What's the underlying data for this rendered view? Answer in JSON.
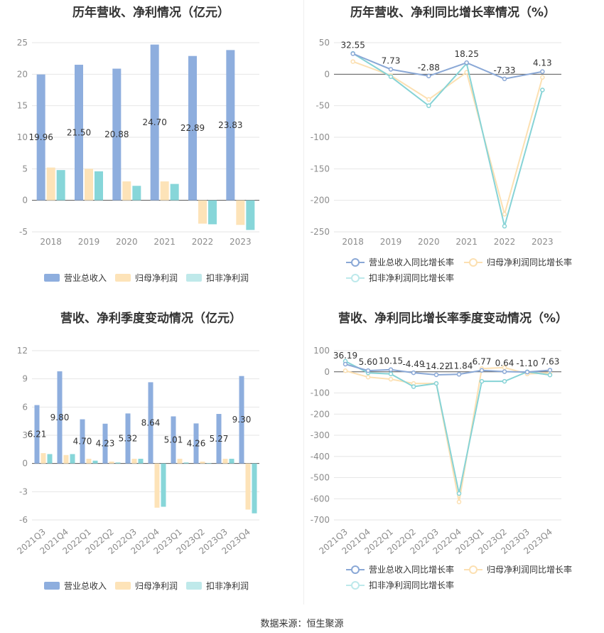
{
  "source_label": "数据来源：恒生聚源",
  "colors": {
    "revenue": "#8eaede",
    "parent_profit": "#fde3b8",
    "deducted_profit": "#87d6d9",
    "revenue_line": "#8aa8d6",
    "parent_line": "#fce0b2",
    "deducted_line": "#86d3d6",
    "grid": "#e6e6e6",
    "axis_text": "#8c8c8c"
  },
  "chart_data": [
    {
      "id": "annual_bar",
      "type": "bar",
      "title": "历年营收、净利情况（亿元）",
      "categories": [
        "2018",
        "2019",
        "2020",
        "2021",
        "2022",
        "2023"
      ],
      "ylim": [
        -5,
        25
      ],
      "yticks": [
        25,
        20,
        15,
        10,
        5,
        0,
        -5
      ],
      "series": [
        {
          "name": "营业总收入",
          "values": [
            19.96,
            21.5,
            20.88,
            24.7,
            22.89,
            23.83
          ],
          "labels": [
            "19.96",
            "21.50",
            "20.88",
            "24.70",
            "22.89",
            "23.83"
          ]
        },
        {
          "name": "归母净利润",
          "values": [
            5.2,
            5.0,
            3.0,
            3.0,
            -3.7,
            -3.9
          ]
        },
        {
          "name": "扣非净利润",
          "values": [
            4.8,
            4.6,
            2.3,
            2.6,
            -3.8,
            -4.7
          ]
        }
      ],
      "legend": "bottom",
      "grid": true
    },
    {
      "id": "annual_growth",
      "type": "line",
      "title": "历年营收、净利同比增长率情况（%）",
      "categories": [
        "2018",
        "2019",
        "2020",
        "2021",
        "2022",
        "2023"
      ],
      "ylim": [
        -250,
        50
      ],
      "yticks": [
        50,
        0,
        -50,
        -100,
        -150,
        -200,
        -250
      ],
      "series": [
        {
          "name": "营业总收入同比增长率",
          "values": [
            32.55,
            7.73,
            -2.88,
            18.25,
            -7.33,
            4.13
          ],
          "labels": [
            "32.55",
            "7.73",
            "-2.88",
            "18.25",
            "-7.33",
            "4.13"
          ]
        },
        {
          "name": "归母净利润同比增长率",
          "values": [
            20,
            -2,
            -40,
            3,
            -222,
            -5
          ]
        },
        {
          "name": "扣非净利润同比增长率",
          "values": [
            33,
            -4,
            -50,
            17,
            -241,
            -25
          ]
        }
      ],
      "legend": "bottom",
      "grid": true
    },
    {
      "id": "quarterly_bar",
      "type": "bar",
      "title": "营收、净利季度变动情况（亿元）",
      "categories": [
        "2021Q3",
        "2021Q4",
        "2022Q1",
        "2022Q2",
        "2022Q3",
        "2022Q4",
        "2023Q1",
        "2023Q2",
        "2023Q3",
        "2023Q4"
      ],
      "ylim": [
        -6,
        12
      ],
      "yticks": [
        12,
        9,
        6,
        3,
        0,
        -3,
        -6
      ],
      "series": [
        {
          "name": "营业总收入",
          "values": [
            6.21,
            9.8,
            4.7,
            4.23,
            5.32,
            8.64,
            5.01,
            4.26,
            5.27,
            9.3
          ],
          "labels": [
            "6.21",
            "9.80",
            "4.70",
            "4.23",
            "5.32",
            "8.64",
            "5.01",
            "4.26",
            "5.27",
            "9.30"
          ]
        },
        {
          "name": "归母净利润",
          "values": [
            1.1,
            0.9,
            0.5,
            0.2,
            0.5,
            -4.7,
            0.5,
            0.2,
            0.5,
            -4.9
          ]
        },
        {
          "name": "扣非净利润",
          "values": [
            1.0,
            1.0,
            0.3,
            0.1,
            0.5,
            -4.6,
            0.1,
            0.05,
            0.5,
            -5.3
          ]
        }
      ],
      "legend": "bottom",
      "grid": true
    },
    {
      "id": "quarterly_growth",
      "type": "line",
      "title": "营收、净利同比增长率季度变动情况（%）",
      "categories": [
        "2021Q3",
        "2021Q4",
        "2022Q1",
        "2022Q2",
        "2022Q3",
        "2022Q4",
        "2023Q1",
        "2023Q2",
        "2023Q3",
        "2023Q4"
      ],
      "ylim": [
        -700,
        100
      ],
      "yticks": [
        100,
        0,
        -100,
        -200,
        -300,
        -400,
        -500,
        -600,
        -700
      ],
      "series": [
        {
          "name": "营业总收入同比增长率",
          "values": [
            36.19,
            5.6,
            10.15,
            -4.49,
            -14.22,
            -11.84,
            6.77,
            0.64,
            -1.1,
            7.63
          ],
          "labels": [
            "36.19",
            "5.60",
            "10.15",
            "-4.49",
            "-14.22",
            "-11.84",
            "6.77",
            "0.64",
            "-1.10",
            "7.63"
          ]
        },
        {
          "name": "归母净利润同比增长率",
          "values": [
            5,
            -25,
            -35,
            -55,
            -55,
            -615,
            15,
            20,
            -10,
            -5
          ]
        },
        {
          "name": "扣非净利润同比增长率",
          "values": [
            50,
            -5,
            -10,
            -70,
            -55,
            -575,
            -45,
            -45,
            0,
            -15
          ]
        }
      ],
      "legend": "bottom",
      "grid": true
    }
  ]
}
